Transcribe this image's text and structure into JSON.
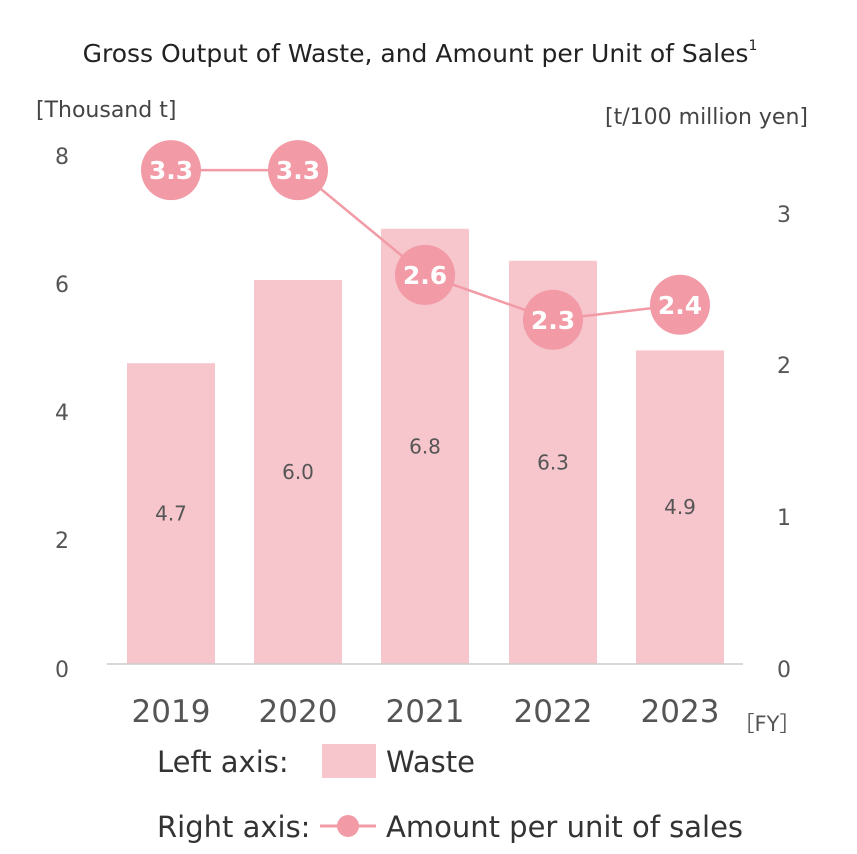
{
  "chart_data": {
    "type": "bar+line",
    "title": "Gross Output of Waste, and Amount per Unit of Sales",
    "title_superscript": "1",
    "categories": [
      "2019",
      "2020",
      "2021",
      "2022",
      "2023"
    ],
    "x_unit": "［FY］",
    "left_axis": {
      "label": "[Thousand t]",
      "ylim": [
        0,
        8
      ],
      "ticks": [
        "0",
        "2",
        "4",
        "6",
        "8"
      ]
    },
    "right_axis": {
      "label": "[t/100 million yen]",
      "ylim": [
        0,
        3.4
      ],
      "ticks": [
        "0",
        "1",
        "2",
        "3"
      ]
    },
    "series": [
      {
        "name": "Waste",
        "axis": "left",
        "kind": "bar",
        "values": [
          4.7,
          6.0,
          6.8,
          6.3,
          4.9
        ],
        "labels": [
          "4.7",
          "6.0",
          "6.8",
          "6.3",
          "4.9"
        ]
      },
      {
        "name": "Amount per unit of sales",
        "axis": "right",
        "kind": "line",
        "values": [
          3.3,
          3.3,
          2.6,
          2.3,
          2.4
        ],
        "labels": [
          "3.3",
          "3.3",
          "2.6",
          "2.3",
          "2.4"
        ]
      }
    ],
    "legend": [
      {
        "axis_label": "Left axis:",
        "name": "Waste",
        "symbol": "bar"
      },
      {
        "axis_label": "Right axis:",
        "name": "Amount per unit of sales",
        "symbol": "line-dot"
      }
    ],
    "colors": {
      "bar": "#f6c6cc",
      "line": "#f29aa5",
      "marker": "#f29aa5",
      "axis": "#cccccc"
    }
  }
}
